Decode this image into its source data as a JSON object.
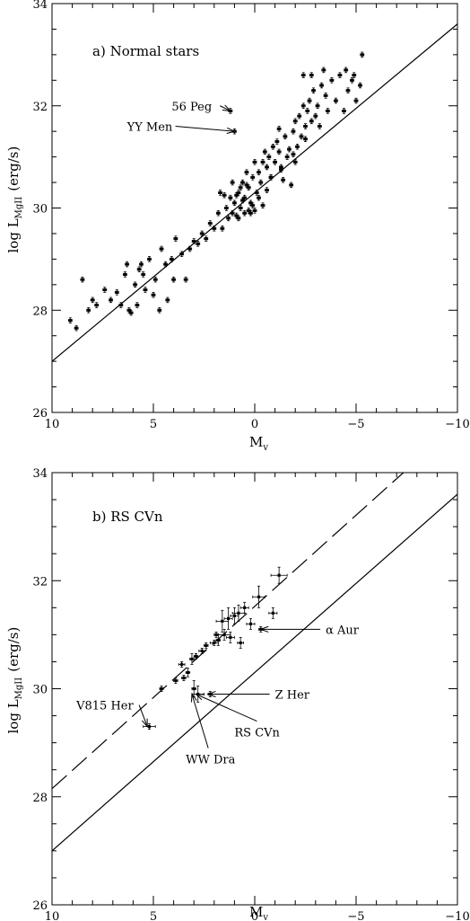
{
  "chart_data": [
    {
      "type": "scatter",
      "title": "a) Normal stars",
      "xlabel": "M",
      "xlabel_sub": "v",
      "ylabel": "log  L",
      "ylabel_sub": "MgII",
      "ylabel_unit": "(erg/s)",
      "xlim": [
        10,
        -10
      ],
      "ylim": [
        26,
        34
      ],
      "x_ticks": [
        10,
        5,
        0,
        -5,
        -10
      ],
      "x_tick_labels": [
        "10",
        "5",
        "0",
        "−5",
        "−10"
      ],
      "y_ticks": [
        26,
        28,
        30,
        32,
        34
      ],
      "y_tick_labels": [
        "26",
        "28",
        "30",
        "32",
        "34"
      ],
      "grid": false,
      "fit_lines": [
        {
          "style": "solid",
          "points": [
            [
              10,
              27.0
            ],
            [
              -10,
              33.6
            ]
          ]
        }
      ],
      "annotations": [
        {
          "text": "56 Peg",
          "x": 1.2,
          "y": 31.9,
          "text_x": 4.1,
          "text_y": 32.0
        },
        {
          "text": "YY Men",
          "x": 1.0,
          "y": 31.5,
          "text_x": 6.3,
          "text_y": 31.6
        }
      ],
      "points": [
        [
          9.1,
          27.8,
          0.05,
          0.05
        ],
        [
          8.8,
          27.65,
          0.05,
          0.05
        ],
        [
          8.5,
          28.6,
          0.05,
          0.05
        ],
        [
          8.2,
          28.0,
          0.05,
          0.05
        ],
        [
          8.0,
          28.2,
          0.05,
          0.05
        ],
        [
          7.8,
          28.1,
          0.05,
          0.05
        ],
        [
          7.4,
          28.4,
          0.05,
          0.05
        ],
        [
          7.1,
          28.2,
          0.05,
          0.05
        ],
        [
          6.8,
          28.35,
          0.05,
          0.05
        ],
        [
          6.6,
          28.1,
          0.05,
          0.05
        ],
        [
          6.4,
          28.7,
          0.05,
          0.05
        ],
        [
          6.2,
          28.0,
          0.05,
          0.05
        ],
        [
          6.3,
          28.9,
          0.05,
          0.05
        ],
        [
          6.1,
          27.95,
          0.05,
          0.05
        ],
        [
          5.9,
          28.5,
          0.05,
          0.05
        ],
        [
          5.8,
          28.1,
          0.05,
          0.05
        ],
        [
          5.7,
          28.8,
          0.05,
          0.05
        ],
        [
          5.6,
          28.9,
          0.05,
          0.05
        ],
        [
          5.5,
          28.7,
          0.05,
          0.05
        ],
        [
          5.4,
          28.4,
          0.05,
          0.05
        ],
        [
          5.2,
          29.0,
          0.05,
          0.05
        ],
        [
          5.0,
          28.3,
          0.05,
          0.05
        ],
        [
          4.9,
          28.6,
          0.05,
          0.05
        ],
        [
          4.7,
          28.0,
          0.05,
          0.05
        ],
        [
          4.6,
          29.2,
          0.05,
          0.05
        ],
        [
          4.4,
          28.9,
          0.05,
          0.05
        ],
        [
          4.3,
          28.2,
          0.05,
          0.05
        ],
        [
          4.0,
          28.6,
          0.05,
          0.05
        ],
        [
          4.1,
          29.0,
          0.05,
          0.05
        ],
        [
          3.9,
          29.4,
          0.05,
          0.05
        ],
        [
          3.6,
          29.1,
          0.05,
          0.05
        ],
        [
          3.4,
          28.6,
          0.05,
          0.05
        ],
        [
          3.2,
          29.2,
          0.05,
          0.05
        ],
        [
          3.0,
          29.35,
          0.05,
          0.05
        ],
        [
          2.8,
          29.3,
          0.05,
          0.05
        ],
        [
          2.6,
          29.5,
          0.05,
          0.05
        ],
        [
          2.4,
          29.4,
          0.05,
          0.05
        ],
        [
          2.2,
          29.7,
          0.05,
          0.05
        ],
        [
          2.0,
          29.6,
          0.05,
          0.05
        ],
        [
          1.8,
          29.9,
          0.05,
          0.05
        ],
        [
          1.6,
          29.6,
          0.05,
          0.05
        ],
        [
          1.4,
          30.0,
          0.05,
          0.05
        ],
        [
          1.3,
          29.8,
          0.05,
          0.05
        ],
        [
          1.2,
          30.2,
          0.05,
          0.05
        ],
        [
          1.1,
          29.9,
          0.05,
          0.05
        ],
        [
          1.0,
          30.1,
          0.05,
          0.05
        ],
        [
          0.9,
          29.85,
          0.05,
          0.05
        ],
        [
          0.8,
          30.3,
          0.05,
          0.05
        ],
        [
          0.7,
          30.0,
          0.05,
          0.05
        ],
        [
          0.6,
          30.5,
          0.05,
          0.05
        ],
        [
          0.5,
          30.2,
          0.05,
          0.05
        ],
        [
          0.4,
          30.7,
          0.05,
          0.05
        ],
        [
          0.3,
          30.4,
          0.05,
          0.05
        ],
        [
          0.2,
          30.1,
          0.05,
          0.05
        ],
        [
          0.1,
          30.6,
          0.05,
          0.05
        ],
        [
          0.0,
          30.9,
          0.05,
          0.05
        ],
        [
          -0.1,
          30.3,
          0.05,
          0.05
        ],
        [
          -0.2,
          30.7,
          0.05,
          0.05
        ],
        [
          -0.3,
          30.5,
          0.05,
          0.05
        ],
        [
          -0.4,
          30.9,
          0.05,
          0.05
        ],
        [
          -0.5,
          31.1,
          0.05,
          0.05
        ],
        [
          -0.6,
          30.8,
          0.05,
          0.05
        ],
        [
          -0.7,
          31.0,
          0.05,
          0.05
        ],
        [
          -0.8,
          30.6,
          0.05,
          0.05
        ],
        [
          -0.9,
          31.2,
          0.05,
          0.05
        ],
        [
          -1.0,
          30.9,
          0.05,
          0.05
        ],
        [
          -1.1,
          31.3,
          0.05,
          0.05
        ],
        [
          -1.2,
          31.1,
          0.05,
          0.05
        ],
        [
          -1.3,
          30.8,
          0.05,
          0.05
        ],
        [
          -1.5,
          31.4,
          0.05,
          0.05
        ],
        [
          -1.6,
          31.0,
          0.05,
          0.05
        ],
        [
          -1.8,
          30.45,
          0.05,
          0.05
        ],
        [
          -1.9,
          31.5,
          0.05,
          0.05
        ],
        [
          -2.0,
          31.7,
          0.05,
          0.05
        ],
        [
          -2.1,
          31.2,
          0.05,
          0.05
        ],
        [
          -2.2,
          31.8,
          0.05,
          0.05
        ],
        [
          -2.3,
          31.4,
          0.05,
          0.05
        ],
        [
          -2.4,
          32.0,
          0.05,
          0.05
        ],
        [
          -2.5,
          31.6,
          0.05,
          0.05
        ],
        [
          -2.6,
          31.9,
          0.05,
          0.05
        ],
        [
          -2.7,
          32.1,
          0.05,
          0.05
        ],
        [
          -2.8,
          31.7,
          0.05,
          0.05
        ],
        [
          -2.9,
          32.3,
          0.05,
          0.05
        ],
        [
          -3.0,
          31.8,
          0.05,
          0.05
        ],
        [
          -3.1,
          32.0,
          0.05,
          0.05
        ],
        [
          -3.2,
          31.6,
          0.05,
          0.05
        ],
        [
          -3.3,
          32.4,
          0.05,
          0.05
        ],
        [
          -3.5,
          32.2,
          0.05,
          0.05
        ],
        [
          -3.6,
          31.9,
          0.05,
          0.05
        ],
        [
          -3.8,
          32.5,
          0.05,
          0.05
        ],
        [
          -4.0,
          32.1,
          0.05,
          0.05
        ],
        [
          -4.2,
          32.6,
          0.05,
          0.05
        ],
        [
          -4.4,
          31.9,
          0.05,
          0.05
        ],
        [
          -4.6,
          32.3,
          0.05,
          0.05
        ],
        [
          -4.8,
          32.5,
          0.05,
          0.05
        ],
        [
          -5.0,
          32.1,
          0.05,
          0.05
        ],
        [
          0.3,
          29.95,
          0.05,
          0.05
        ],
        [
          0.5,
          29.9,
          0.05,
          0.05
        ],
        [
          0.7,
          30.4,
          0.05,
          0.05
        ],
        [
          0.9,
          30.25,
          0.05,
          0.05
        ],
        [
          1.1,
          30.5,
          0.05,
          0.05
        ],
        [
          1.5,
          30.25,
          0.05,
          0.05
        ],
        [
          1.7,
          30.3,
          0.05,
          0.05
        ],
        [
          -0.6,
          30.35,
          0.05,
          0.05
        ],
        [
          -1.4,
          30.55,
          0.05,
          0.05
        ],
        [
          -1.7,
          31.15,
          0.05,
          0.05
        ],
        [
          -2.0,
          30.9,
          0.05,
          0.05
        ],
        [
          -1.2,
          31.55,
          0.05,
          0.05
        ],
        [
          0.0,
          29.95,
          0.05,
          0.05
        ],
        [
          0.1,
          30.05,
          0.05,
          0.05
        ],
        [
          0.2,
          29.9,
          0.05,
          0.05
        ],
        [
          -0.4,
          30.05,
          0.05,
          0.05
        ],
        [
          -0.2,
          30.2,
          0.05,
          0.05
        ],
        [
          0.4,
          30.45,
          0.05,
          0.05
        ],
        [
          0.6,
          30.15,
          0.05,
          0.05
        ],
        [
          0.8,
          29.8,
          0.05,
          0.05
        ],
        [
          -0.8,
          30.6,
          0.05,
          0.05
        ],
        [
          -1.3,
          30.75,
          0.05,
          0.05
        ],
        [
          -1.9,
          31.05,
          0.05,
          0.05
        ],
        [
          -2.5,
          31.35,
          0.05,
          0.05
        ],
        [
          -2.4,
          32.6,
          0.05,
          0.05
        ],
        [
          -2.8,
          32.6,
          0.05,
          0.05
        ],
        [
          -3.4,
          32.7,
          0.05,
          0.05
        ],
        [
          -4.5,
          32.7,
          0.05,
          0.05
        ],
        [
          -5.3,
          33.0,
          0.05,
          0.05
        ],
        [
          -4.9,
          32.6,
          0.05,
          0.05
        ],
        [
          -5.2,
          32.4,
          0.05,
          0.05
        ],
        [
          1.2,
          31.9,
          0.05,
          0.05
        ],
        [
          1.0,
          31.5,
          0.05,
          0.05
        ]
      ]
    },
    {
      "type": "scatter",
      "title": "b) RS CVn",
      "xlabel": "M",
      "xlabel_sub": "v",
      "ylabel": "log  L",
      "ylabel_sub": "MgII",
      "ylabel_unit": "(erg/s)",
      "xlim": [
        10,
        -10
      ],
      "ylim": [
        26,
        34
      ],
      "x_ticks": [
        10,
        5,
        0,
        -5,
        -10
      ],
      "x_tick_labels": [
        "10",
        "5",
        "0",
        "−5",
        "−10"
      ],
      "y_ticks": [
        26,
        28,
        30,
        32,
        34
      ],
      "y_tick_labels": [
        "26",
        "28",
        "30",
        "32",
        "34"
      ],
      "grid": false,
      "fit_lines": [
        {
          "style": "solid",
          "points": [
            [
              10,
              27.0
            ],
            [
              -10,
              33.6
            ]
          ]
        },
        {
          "style": "dashed",
          "points": [
            [
              10,
              28.15
            ],
            [
              -10,
              34.9
            ]
          ]
        }
      ],
      "annotations": [
        {
          "text": "α Aur",
          "x": -0.3,
          "y": 31.1,
          "text_x": -3.5,
          "text_y": 31.1
        },
        {
          "text": "Z Her",
          "x": 2.3,
          "y": 29.9,
          "text_x": -1.0,
          "text_y": 29.9
        },
        {
          "text": "V815 Her",
          "x": 5.3,
          "y": 29.3,
          "text_x": 8.8,
          "text_y": 29.7
        },
        {
          "text": "WW Dra",
          "x": 3.1,
          "y": 29.9,
          "text_x": 3.4,
          "text_y": 28.7
        },
        {
          "text": "RS CVn",
          "x": 2.9,
          "y": 29.9,
          "text_x": 1.0,
          "text_y": 29.2
        }
      ],
      "points": [
        [
          5.2,
          29.3,
          0.3,
          0.05
        ],
        [
          4.6,
          30.0,
          0.05,
          0.05
        ],
        [
          3.9,
          30.15,
          0.1,
          0.05
        ],
        [
          3.6,
          30.45,
          0.15,
          0.05
        ],
        [
          3.5,
          30.2,
          0.1,
          0.05
        ],
        [
          3.3,
          30.3,
          0.1,
          0.08
        ],
        [
          3.1,
          30.55,
          0.1,
          0.1
        ],
        [
          3.0,
          30.0,
          0.1,
          0.15
        ],
        [
          2.9,
          30.6,
          0.1,
          0.05
        ],
        [
          2.8,
          29.9,
          0.3,
          0.15
        ],
        [
          2.6,
          30.7,
          0.15,
          0.05
        ],
        [
          2.4,
          30.8,
          0.1,
          0.05
        ],
        [
          2.2,
          29.9,
          0.1,
          0.05
        ],
        [
          2.0,
          30.85,
          0.2,
          0.05
        ],
        [
          1.9,
          31.0,
          0.1,
          0.05
        ],
        [
          1.8,
          30.9,
          0.1,
          0.1
        ],
        [
          1.6,
          31.25,
          0.3,
          0.2
        ],
        [
          1.5,
          31.0,
          0.3,
          0.1
        ],
        [
          1.2,
          30.95,
          0.2,
          0.1
        ],
        [
          1.0,
          31.35,
          0.2,
          0.15
        ],
        [
          0.8,
          31.4,
          0.3,
          0.15
        ],
        [
          0.5,
          31.5,
          0.2,
          0.1
        ],
        [
          0.2,
          31.2,
          0.2,
          0.1
        ],
        [
          -0.2,
          31.7,
          0.3,
          0.2
        ],
        [
          -0.3,
          31.1,
          0.1,
          0.05
        ],
        [
          -0.9,
          31.4,
          0.2,
          0.1
        ],
        [
          -1.2,
          32.1,
          0.4,
          0.15
        ],
        [
          1.3,
          31.3,
          0.2,
          0.2
        ],
        [
          0.7,
          30.85,
          0.15,
          0.1
        ]
      ]
    }
  ]
}
